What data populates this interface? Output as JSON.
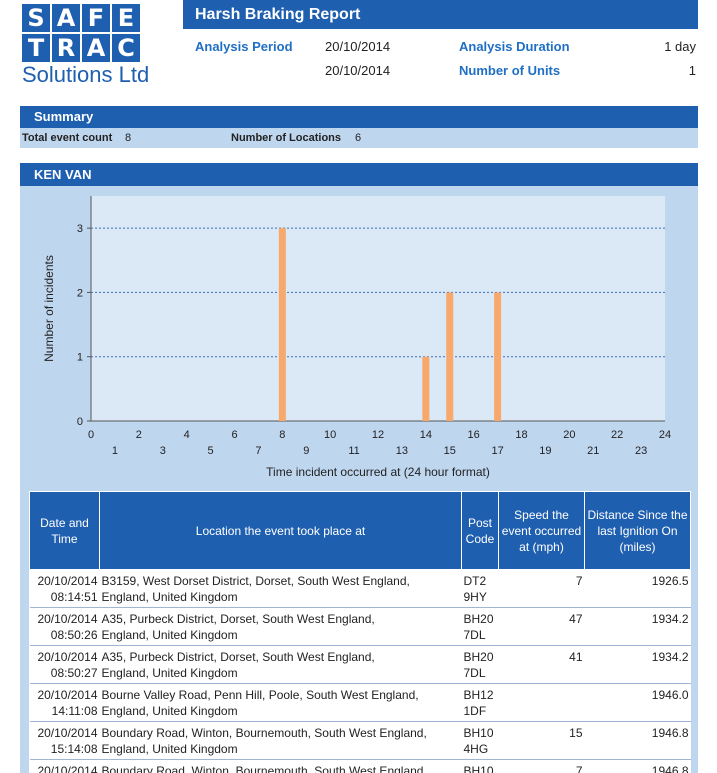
{
  "logo": {
    "row1": [
      "S",
      "A",
      "F",
      "E"
    ],
    "row2": [
      "T",
      "R",
      "A",
      "C"
    ],
    "subtitle": "Solutions Ltd"
  },
  "header": {
    "title": "Harsh Braking Report",
    "analysis_period_label": "Analysis Period",
    "period_from": "20/10/2014",
    "period_to": "20/10/2014",
    "analysis_duration_label": "Analysis Duration",
    "analysis_duration_value": "1 day",
    "units_label": "Number of Units",
    "units_value": "1"
  },
  "summary": {
    "title": "Summary",
    "total_label": "Total event count",
    "total_value": "8",
    "locations_label": "Number of Locations",
    "locations_value": "6"
  },
  "vehicle": {
    "name": "KEN VAN"
  },
  "colors": {
    "brand_blue": "#1f5fb0",
    "panel_blue": "#bfd6ef",
    "plot_bg": "#dbe9f7",
    "bar": "#f7a86a"
  },
  "chart_data": {
    "type": "bar",
    "xlabel": "Time incident occurred at (24 hour format)",
    "ylabel": "Number of incidents",
    "xlim": [
      0,
      24
    ],
    "ylim": [
      0,
      3.5
    ],
    "y_ticks": [
      0,
      1,
      2,
      3
    ],
    "x_ticks_top": [
      0,
      2,
      4,
      6,
      8,
      10,
      12,
      14,
      16,
      18,
      20,
      22,
      24
    ],
    "x_ticks_bottom": [
      1,
      3,
      5,
      7,
      9,
      11,
      13,
      15,
      17,
      19,
      21,
      23
    ],
    "grid": true,
    "x": [
      8,
      14,
      15,
      17
    ],
    "values": [
      3,
      1,
      2,
      2
    ]
  },
  "table": {
    "headers": [
      "Date and Time",
      "Location the event took place at",
      "Post Code",
      "Speed the event occurred at (mph)",
      "Distance Since the last Ignition On (miles)"
    ],
    "rows": [
      {
        "date": "20/10/2014",
        "time": "08:14:51",
        "loc1": "B3159, West Dorset District, Dorset, South West England,",
        "loc2": "England, United Kingdom",
        "pc1": "DT2",
        "pc2": "9HY",
        "speed": "7",
        "distance": "1926.5"
      },
      {
        "date": "20/10/2014",
        "time": "08:50:26",
        "loc1": "A35, Purbeck District, Dorset, South West England,",
        "loc2": "England, United Kingdom",
        "pc1": "BH20",
        "pc2": "7DL",
        "speed": "47",
        "distance": "1934.2"
      },
      {
        "date": "20/10/2014",
        "time": "08:50:27",
        "loc1": "A35, Purbeck District, Dorset, South West England,",
        "loc2": "England, United Kingdom",
        "pc1": "BH20",
        "pc2": "7DL",
        "speed": "41",
        "distance": "1934.2"
      },
      {
        "date": "20/10/2014",
        "time": "14:11:08",
        "loc1": "Bourne Valley Road, Penn Hill, Poole, South West England,",
        "loc2": "England, United Kingdom",
        "pc1": "BH12",
        "pc2": "1DF",
        "speed": "",
        "distance": "1946.0"
      },
      {
        "date": "20/10/2014",
        "time": "15:14:08",
        "loc1": "Boundary Road, Winton, Bournemouth, South West England,",
        "loc2": "England, United Kingdom",
        "pc1": "BH10",
        "pc2": "4HG",
        "speed": "15",
        "distance": "1946.8"
      },
      {
        "date": "20/10/2014",
        "time": "",
        "loc1": "Boundary Road, Winton, Bournemouth, South West England,",
        "loc2": "",
        "pc1": "BH10",
        "pc2": "",
        "speed": "7",
        "distance": "1946.8"
      }
    ]
  }
}
